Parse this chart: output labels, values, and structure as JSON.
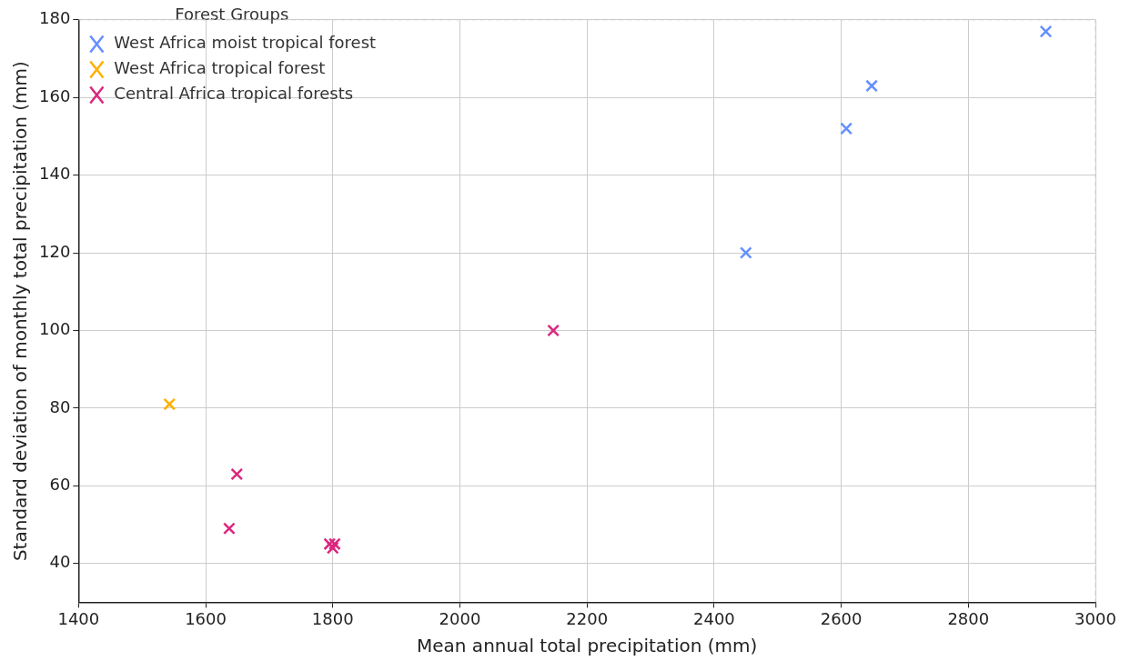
{
  "chart_data": {
    "type": "scatter",
    "xlabel": "Mean annual total precipitation (mm)",
    "ylabel": "Standard deviation of monthly total precipitation (mm)",
    "legend_title": "Forest Groups",
    "xlim": [
      1400,
      3000
    ],
    "ylim": [
      30,
      180
    ],
    "xticks": [
      1400,
      1600,
      1800,
      2000,
      2200,
      2400,
      2600,
      2800,
      3000
    ],
    "yticks": [
      40,
      60,
      80,
      100,
      120,
      140,
      160,
      180
    ],
    "grid": true,
    "legend": "top left",
    "marker": "cross",
    "series": [
      {
        "name": "West Africa moist tropical forest",
        "color": "#648fff",
        "x": [
          2450,
          2608,
          2648,
          2922
        ],
        "values": [
          120,
          152,
          163,
          177
        ]
      },
      {
        "name": "West Africa tropical forest",
        "color": "#ffb000",
        "x": [
          1543
        ],
        "values": [
          81
        ]
      },
      {
        "name": "Central Africa tropical forests",
        "color": "#dc267f",
        "x": [
          1649,
          1637,
          1795,
          1803,
          1800,
          2147
        ],
        "values": [
          63,
          49,
          45,
          45,
          44,
          100
        ]
      }
    ]
  }
}
